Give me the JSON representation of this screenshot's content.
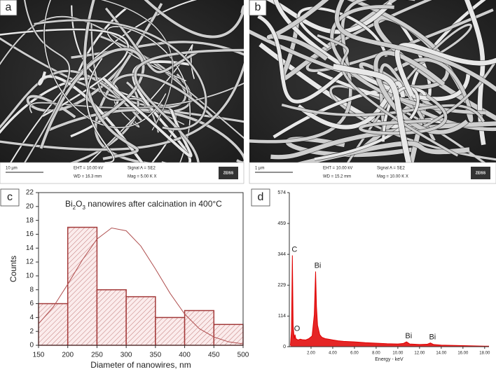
{
  "panels": [
    {
      "label": "a",
      "scale_bar": "10 µm",
      "eht": "EHT = 10.00 kV",
      "wd": "WD = 16.3 mm",
      "signal": "Signal A = SE2",
      "mag": "Mag =  5.00 K X",
      "logo": "ZEISS"
    },
    {
      "label": "b",
      "scale_bar": "1 µm",
      "eht": "EHT = 10.00 kV",
      "wd": "WD = 15.2 mm",
      "signal": "Signal A = SE2",
      "mag": "Mag = 10.00 K X",
      "logo": "ZEISS"
    }
  ],
  "chart_data": [
    {
      "type": "histogram",
      "label": "c",
      "title_parts": [
        "Bi",
        "2",
        "O",
        "3",
        " nanowires after calcination in 400°C"
      ],
      "xlabel": "Diameter of nanowires, nm",
      "ylabel": "Counts",
      "bins": [
        150,
        200,
        250,
        300,
        350,
        400,
        450,
        500
      ],
      "values": [
        6,
        17,
        8,
        7,
        4,
        5,
        3
      ],
      "fit": {
        "x": [
          150,
          175,
          200,
          225,
          250,
          275,
          300,
          325,
          350,
          375,
          400,
          425,
          450,
          475,
          500
        ],
        "values": [
          3.1,
          5.5,
          8.8,
          12.3,
          15.3,
          16.9,
          16.5,
          14.3,
          11.0,
          7.5,
          4.5,
          2.4,
          1.2,
          0.5,
          0.2
        ]
      },
      "xlim": [
        150,
        500
      ],
      "ylim": [
        0,
        22
      ],
      "xticks": [
        150,
        200,
        250,
        300,
        350,
        400,
        450,
        500
      ],
      "yticks": [
        0,
        2,
        4,
        6,
        8,
        10,
        12,
        14,
        16,
        18,
        20,
        22
      ],
      "color": "#a33a3a"
    },
    {
      "type": "spectrum",
      "label": "d",
      "xlabel": "Energy - keV",
      "x": [
        0.1,
        0.2,
        0.28,
        0.35,
        0.45,
        0.52,
        0.6,
        0.8,
        1.0,
        1.2,
        1.5,
        1.8,
        2.1,
        2.3,
        2.42,
        2.5,
        2.6,
        2.8,
        3.0,
        3.3,
        3.6,
        4.0,
        4.5,
        5.0,
        6.0,
        7.0,
        8.0,
        9.0,
        10.0,
        10.5,
        10.8,
        11.1,
        12.0,
        12.7,
        13.0,
        13.3,
        14.0,
        15.0,
        16.0,
        17.0,
        18.0,
        18.4
      ],
      "values": [
        5,
        60,
        340,
        80,
        30,
        45,
        30,
        25,
        28,
        26,
        25,
        30,
        40,
        120,
        280,
        150,
        80,
        45,
        35,
        30,
        28,
        25,
        22,
        20,
        18,
        15,
        13,
        11,
        10,
        12,
        18,
        10,
        8,
        9,
        14,
        8,
        6,
        5,
        4,
        3,
        2,
        2
      ],
      "annotations": [
        {
          "text": "C",
          "x": 0.28
        },
        {
          "text": "O",
          "x": 0.52
        },
        {
          "text": "Bi",
          "x": 2.42
        },
        {
          "text": "Bi",
          "x": 10.8
        },
        {
          "text": "Bi",
          "x": 13.0
        }
      ],
      "xlim": [
        0,
        18.4
      ],
      "ylim": [
        0,
        574
      ],
      "xticks": [
        {
          "value": 2,
          "label": "2.00"
        },
        {
          "value": 4,
          "label": "4.00"
        },
        {
          "value": 6,
          "label": "6.00"
        },
        {
          "value": 8,
          "label": "8.00"
        },
        {
          "value": 10,
          "label": "10.00"
        },
        {
          "value": 12,
          "label": "12.00"
        },
        {
          "value": 14,
          "label": "14.00"
        },
        {
          "value": 16,
          "label": "16.00"
        },
        {
          "value": 18,
          "label": "18.00"
        }
      ],
      "yticks": [
        0,
        114,
        229,
        344,
        459,
        574
      ],
      "color": "#e00000"
    }
  ]
}
